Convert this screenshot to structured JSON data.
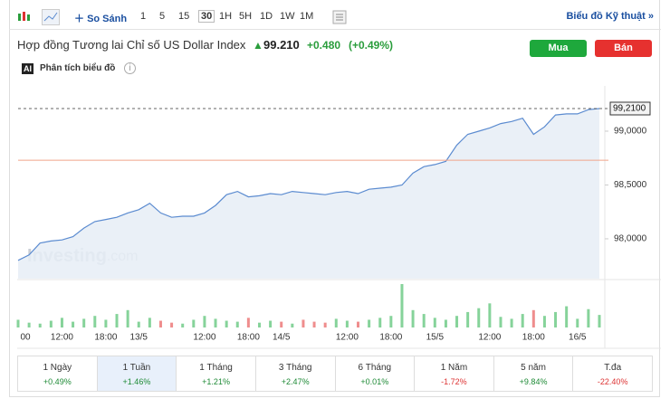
{
  "toolbar": {
    "compare": "So Sánh",
    "intervals": [
      "1",
      "5",
      "15",
      "30",
      "1H",
      "5H",
      "1D",
      "1W",
      "1M"
    ],
    "selected_interval": 3,
    "technical": "Biểu đồ Kỹ thuật »"
  },
  "header": {
    "title": "Hợp đồng Tương lai Chỉ số US Dollar Index",
    "price": "99.210",
    "change": "+0.480",
    "change_pct": "(+0.49%)",
    "buy": "Mua",
    "sell": "Bán",
    "analysis": "Phân tích biểu đồ"
  },
  "chart_data": {
    "type": "line",
    "watermark": [
      "Investing",
      ".com"
    ],
    "categories": [
      "00",
      null,
      null,
      null,
      "12:00",
      null,
      null,
      null,
      "18:00",
      null,
      null,
      "13/5",
      null,
      null,
      null,
      null,
      null,
      "12:00",
      null,
      null,
      null,
      "18:00",
      null,
      null,
      "14/5",
      null,
      null,
      null,
      null,
      null,
      "12:00",
      null,
      null,
      null,
      "18:00",
      null,
      null,
      null,
      "15/5",
      null,
      null,
      null,
      null,
      "12:00",
      null,
      null,
      null,
      "18:00",
      null,
      null,
      null,
      "16/5",
      null,
      null
    ],
    "series": [
      {
        "name": "US Dollar Index",
        "color": "#5b8bd0",
        "values": [
          97.8,
          97.85,
          97.96,
          97.98,
          97.99,
          98.02,
          98.1,
          98.16,
          98.18,
          98.2,
          98.24,
          98.27,
          98.33,
          98.24,
          98.2,
          98.21,
          98.21,
          98.24,
          98.31,
          98.41,
          98.44,
          98.39,
          98.4,
          98.42,
          98.41,
          98.44,
          98.43,
          98.42,
          98.41,
          98.43,
          98.44,
          98.42,
          98.46,
          98.47,
          98.48,
          98.5,
          98.61,
          98.67,
          98.69,
          98.72,
          98.87,
          98.97,
          99.0,
          99.03,
          99.07,
          99.09,
          99.12,
          98.97,
          99.04,
          99.15,
          99.16,
          99.16,
          99.2,
          99.21
        ]
      }
    ],
    "volume": [
      8,
      5,
      4,
      7,
      10,
      6,
      9,
      12,
      8,
      14,
      18,
      6,
      10,
      7,
      5,
      4,
      8,
      12,
      9,
      7,
      6,
      10,
      5,
      7,
      6,
      4,
      8,
      6,
      5,
      9,
      7,
      6,
      8,
      10,
      12,
      45,
      18,
      14,
      10,
      8,
      12,
      16,
      20,
      25,
      11,
      9,
      14,
      18,
      12,
      16,
      22,
      9,
      19,
      13
    ],
    "ylim": [
      97.63,
      99.42
    ],
    "yticks": [
      {
        "value": 98,
        "label": "98,0000"
      },
      {
        "value": 98.5,
        "label": "98,5000"
      },
      {
        "value": 99,
        "label": "99,0000"
      }
    ],
    "current": {
      "value": 99.21,
      "label": "99,2100"
    },
    "reference_line": 98.73
  },
  "periods": [
    {
      "label": "1 Ngày",
      "change": "+0.49%"
    },
    {
      "label": "1 Tuần",
      "change": "+1.46%"
    },
    {
      "label": "1 Tháng",
      "change": "+1.21%"
    },
    {
      "label": "3 Tháng",
      "change": "+2.47%"
    },
    {
      "label": "6 Tháng",
      "change": "+0.01%"
    },
    {
      "label": "1 Năm",
      "change": "-1.72%"
    },
    {
      "label": "5 năm",
      "change": "+9.84%"
    },
    {
      "label": "T.đa",
      "change": "-22.40%"
    }
  ],
  "selected_period": 1
}
